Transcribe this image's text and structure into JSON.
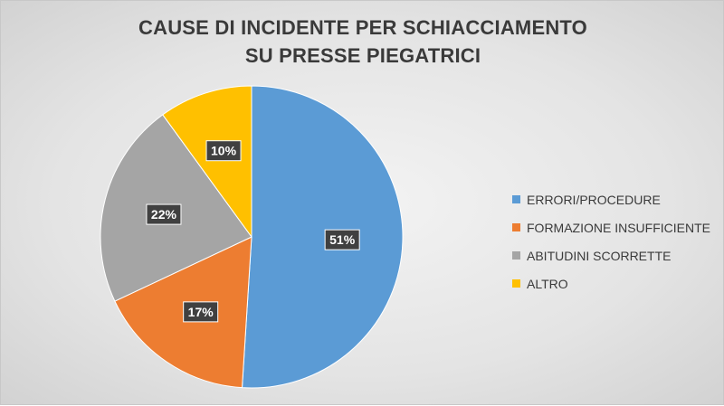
{
  "chart_data": {
    "type": "pie",
    "title_lines": [
      "CAUSE DI INCIDENTE PER SCHIACCIAMENTO",
      "SU PRESSE PIEGATRICI"
    ],
    "categories": [
      "ERRORI/PROCEDURE",
      "FORMAZIONE INSUFFICIENTE",
      "ABITUDINI SCORRETTE",
      "ALTRO"
    ],
    "values": [
      51,
      17,
      22,
      10
    ],
    "value_labels": [
      "51%",
      "17%",
      "22%",
      "10%"
    ],
    "colors": [
      "#5b9bd5",
      "#ed7d31",
      "#a5a5a5",
      "#ffc000"
    ],
    "legend_position": "right"
  }
}
